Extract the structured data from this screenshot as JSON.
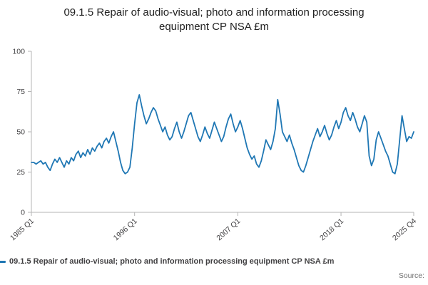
{
  "chart_data": {
    "type": "line",
    "title": "09.1.5 Repair of audio-visual; photo and information processing equipment CP NSA £m",
    "series_name": "09.1.5 Repair of audio-visual; photo and information processing equipment CP NSA £m",
    "frequency": "quarterly",
    "x_start": "1985 Q1",
    "x_end": "2025 Q4",
    "ylim": [
      0,
      100
    ],
    "yticks": [
      0,
      25,
      50,
      75,
      100
    ],
    "xtick_labels": [
      "1985 Q1",
      "1996 Q1",
      "2007 Q1",
      "2018 Q1",
      "2025 Q4"
    ],
    "xtick_indices": [
      0,
      44,
      88,
      132,
      163
    ],
    "line_color": "#1f77b4",
    "axis_color": "#b5b5b5",
    "tick_label_color": "#414042",
    "values": [
      31,
      31,
      30,
      31,
      32,
      30,
      31,
      28,
      26,
      30,
      33,
      31,
      34,
      31,
      28,
      32,
      30,
      34,
      32,
      36,
      38,
      34,
      37,
      35,
      39,
      36,
      40,
      38,
      41,
      43,
      40,
      44,
      46,
      43,
      47,
      50,
      44,
      38,
      31,
      26,
      24,
      25,
      28,
      40,
      55,
      68,
      73,
      66,
      60,
      55,
      58,
      62,
      65,
      63,
      58,
      54,
      50,
      53,
      48,
      45,
      47,
      52,
      56,
      50,
      46,
      50,
      55,
      60,
      62,
      57,
      52,
      47,
      44,
      48,
      53,
      49,
      46,
      51,
      56,
      52,
      48,
      44,
      47,
      53,
      58,
      61,
      55,
      50,
      53,
      57,
      52,
      46,
      40,
      36,
      33,
      35,
      30,
      28,
      32,
      38,
      45,
      42,
      39,
      44,
      52,
      70,
      61,
      50,
      47,
      44,
      48,
      43,
      39,
      34,
      29,
      26,
      25,
      29,
      34,
      39,
      44,
      48,
      52,
      47,
      50,
      54,
      49,
      45,
      48,
      53,
      57,
      52,
      56,
      62,
      65,
      60,
      57,
      62,
      58,
      53,
      50,
      55,
      60,
      56,
      35,
      29,
      33,
      45,
      50,
      46,
      42,
      38,
      35,
      30,
      25,
      24,
      30,
      45,
      60,
      52,
      44,
      47,
      46,
      50
    ]
  },
  "legend": {
    "label": "09.1.5 Repair of audio-visual; photo and information processing equipment CP NSA £m"
  },
  "footer": {
    "source_label": "Source:"
  }
}
